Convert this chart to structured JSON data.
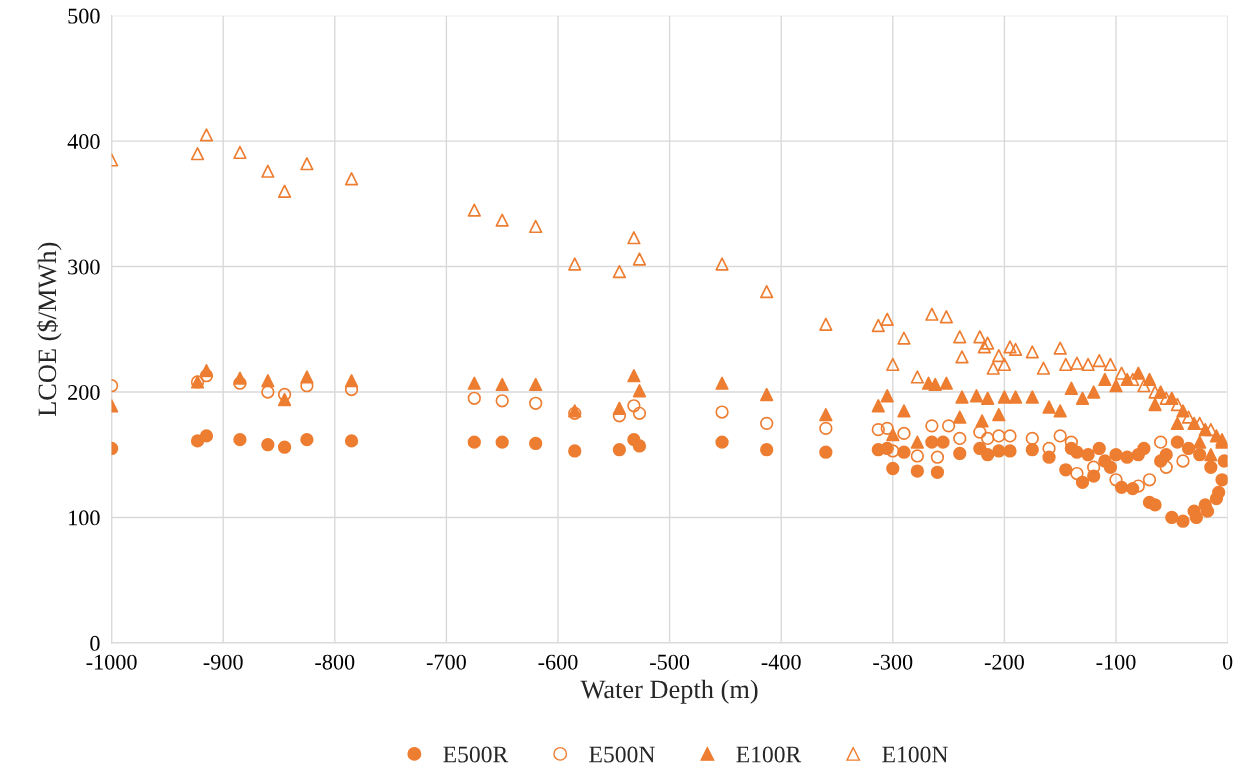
{
  "chart_data": {
    "type": "scatter",
    "xlabel": "Water Depth (m)",
    "ylabel": "LCOE ($/MWh)",
    "xlim": [
      -1000,
      0
    ],
    "xticks": [
      -1000,
      -900,
      -800,
      -700,
      -600,
      -500,
      -400,
      -300,
      -200,
      -100,
      0
    ],
    "ylim": [
      0,
      500
    ],
    "yticks": [
      0,
      100,
      200,
      300,
      400,
      500
    ],
    "grid": true,
    "legend": "bottom",
    "series": [
      {
        "name": "E500R",
        "color": "#ed7d31",
        "marker": "circle",
        "x": [
          -1000,
          -923,
          -915,
          -885,
          -860,
          -845,
          -825,
          -785,
          -675,
          -650,
          -620,
          -585,
          -545,
          -532,
          -527,
          -453,
          -413,
          -360,
          -313,
          -305,
          -300,
          -290,
          -278,
          -265,
          -260,
          -255,
          -240,
          -222,
          -215,
          -205,
          -195,
          -175,
          -160,
          -145,
          -130,
          -120,
          -105,
          -95,
          -85,
          -70,
          -65,
          -50,
          -40,
          -30,
          -20,
          -10,
          -5,
          -15,
          -25,
          -35,
          -45,
          -55,
          -60,
          -75,
          -80,
          -90,
          -100,
          -110,
          -115,
          -125,
          -135,
          -140,
          -3,
          -8,
          -18,
          -28
        ],
        "values": [
          155,
          161,
          165,
          162,
          158,
          156,
          162,
          161,
          160,
          160,
          159,
          153,
          154,
          162,
          157,
          160,
          154,
          152,
          154,
          155,
          139,
          152,
          137,
          160,
          136,
          160,
          151,
          155,
          150,
          153,
          153,
          154,
          148,
          138,
          128,
          133,
          140,
          124,
          123,
          112,
          110,
          100,
          97,
          105,
          110,
          115,
          130,
          140,
          150,
          155,
          160,
          150,
          145,
          155,
          150,
          148,
          150,
          145,
          155,
          150,
          152,
          155,
          145,
          120,
          105,
          100
        ]
      },
      {
        "name": "E500N",
        "color": "#ed7d31",
        "marker": "circle-open",
        "x": [
          -1000,
          -923,
          -915,
          -885,
          -860,
          -845,
          -825,
          -785,
          -675,
          -650,
          -620,
          -585,
          -545,
          -532,
          -527,
          -453,
          -413,
          -360,
          -313,
          -305,
          -300,
          -290,
          -278,
          -265,
          -260,
          -250,
          -240,
          -222,
          -215,
          -205,
          -195,
          -175,
          -160,
          -150,
          -135,
          -120,
          -100,
          -80,
          -70,
          -55,
          -40,
          -60,
          -140
        ],
        "values": [
          205,
          208,
          213,
          207,
          200,
          198,
          205,
          202,
          195,
          193,
          191,
          183,
          181,
          189,
          183,
          184,
          175,
          171,
          170,
          171,
          153,
          167,
          149,
          173,
          148,
          173,
          163,
          168,
          163,
          165,
          165,
          163,
          155,
          165,
          135,
          140,
          130,
          125,
          130,
          140,
          145,
          160,
          160
        ]
      },
      {
        "name": "E100R",
        "color": "#ed7d31",
        "marker": "triangle",
        "x": [
          -1000,
          -923,
          -915,
          -885,
          -860,
          -845,
          -825,
          -785,
          -675,
          -650,
          -620,
          -585,
          -545,
          -532,
          -527,
          -453,
          -413,
          -360,
          -313,
          -305,
          -300,
          -290,
          -278,
          -268,
          -262,
          -252,
          -240,
          -238,
          -225,
          -220,
          -215,
          -205,
          -200,
          -190,
          -175,
          -160,
          -150,
          -140,
          -130,
          -120,
          -110,
          -100,
          -90,
          -80,
          -70,
          -60,
          -50,
          -40,
          -30,
          -20,
          -10,
          -5,
          -65,
          -45,
          -25,
          -15
        ],
        "values": [
          189,
          208,
          217,
          211,
          209,
          194,
          212,
          209,
          207,
          206,
          206,
          185,
          187,
          213,
          201,
          207,
          198,
          182,
          189,
          197,
          166,
          185,
          160,
          207,
          206,
          207,
          180,
          196,
          197,
          177,
          195,
          182,
          196,
          196,
          196,
          188,
          185,
          203,
          195,
          200,
          210,
          205,
          210,
          215,
          210,
          200,
          195,
          185,
          175,
          170,
          165,
          160,
          190,
          175,
          160,
          150
        ]
      },
      {
        "name": "E100N",
        "color": "#ed7d31",
        "marker": "triangle-open",
        "x": [
          -1000,
          -923,
          -915,
          -885,
          -860,
          -845,
          -825,
          -785,
          -675,
          -650,
          -620,
          -585,
          -545,
          -532,
          -527,
          -453,
          -413,
          -360,
          -313,
          -305,
          -300,
          -290,
          -278,
          -265,
          -252,
          -240,
          -238,
          -222,
          -218,
          -215,
          -210,
          -205,
          -200,
          -195,
          -190,
          -175,
          -165,
          -150,
          -145,
          -135,
          -125,
          -115,
          -105,
          -95,
          -85,
          -75,
          -65,
          -55,
          -45,
          -35,
          -25,
          -15,
          -5
        ],
        "values": [
          385,
          390,
          405,
          391,
          376,
          360,
          382,
          370,
          345,
          337,
          332,
          302,
          296,
          323,
          306,
          302,
          280,
          254,
          253,
          258,
          222,
          243,
          212,
          262,
          260,
          244,
          228,
          244,
          236,
          239,
          219,
          229,
          222,
          236,
          234,
          232,
          219,
          235,
          222,
          223,
          222,
          225,
          222,
          215,
          210,
          205,
          200,
          195,
          190,
          180,
          175,
          170,
          162
        ]
      }
    ]
  }
}
